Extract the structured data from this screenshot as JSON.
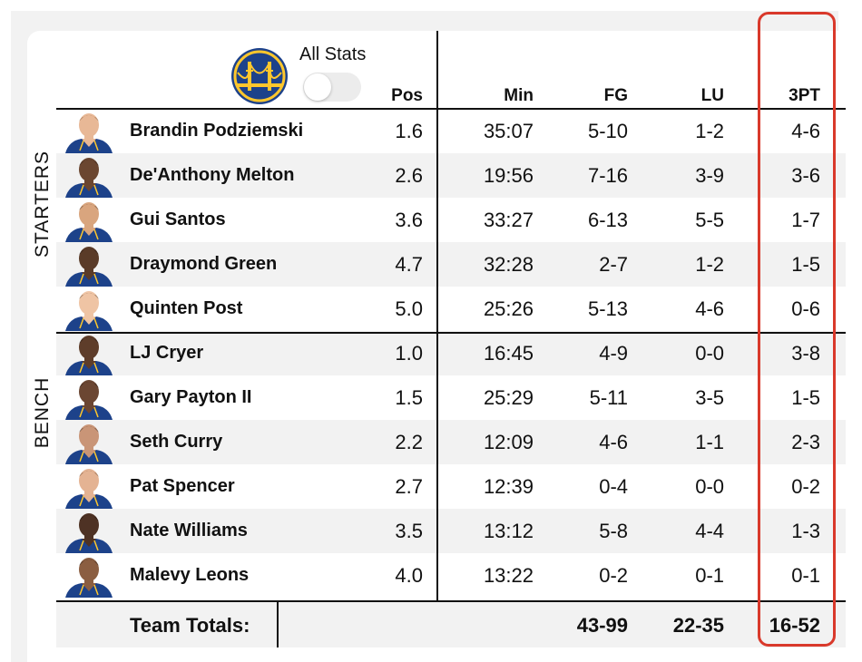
{
  "toggle": {
    "label": "All Stats",
    "on": false
  },
  "columns": {
    "pos": "Pos",
    "min": "Min",
    "fg": "FG",
    "lu": "LU",
    "three": "3PT"
  },
  "groups": {
    "starters": "STARTERS",
    "bench": "BENCH"
  },
  "colors": {
    "team_blue": "#1d428a",
    "team_gold": "#ffc72c",
    "highlight": "#d9392b",
    "row_alt": "#f2f2f2"
  },
  "players": [
    {
      "name": "Brandin Podziemski",
      "pos": "1.6",
      "min": "35:07",
      "fg": "5-10",
      "lu": "1-2",
      "three": "4-6",
      "skin": "#e8b896",
      "hair": "#7a5230"
    },
    {
      "name": "De'Anthony Melton",
      "pos": "2.6",
      "min": "19:56",
      "fg": "7-16",
      "lu": "3-9",
      "three": "3-6",
      "skin": "#6b4630",
      "hair": "#1e1410"
    },
    {
      "name": "Gui Santos",
      "pos": "3.6",
      "min": "33:27",
      "fg": "6-13",
      "lu": "5-5",
      "three": "1-7",
      "skin": "#d9a57e",
      "hair": "#3a2618"
    },
    {
      "name": "Draymond Green",
      "pos": "4.7",
      "min": "32:28",
      "fg": "2-7",
      "lu": "1-2",
      "three": "1-5",
      "skin": "#5a3b28",
      "hair": "#1b1410"
    },
    {
      "name": "Quinten Post",
      "pos": "5.0",
      "min": "25:26",
      "fg": "5-13",
      "lu": "4-6",
      "three": "0-6",
      "skin": "#efc4a4",
      "hair": "#4a3422"
    },
    {
      "name": "LJ Cryer",
      "pos": "1.0",
      "min": "16:45",
      "fg": "4-9",
      "lu": "0-0",
      "three": "3-8",
      "skin": "#5e3d2a",
      "hair": "#17110d"
    },
    {
      "name": "Gary Payton II",
      "pos": "1.5",
      "min": "25:29",
      "fg": "5-11",
      "lu": "3-5",
      "three": "1-5",
      "skin": "#6b4632",
      "hair": "#1a120e"
    },
    {
      "name": "Seth Curry",
      "pos": "2.2",
      "min": "12:09",
      "fg": "4-6",
      "lu": "1-1",
      "three": "2-3",
      "skin": "#c99577",
      "hair": "#2b1d14"
    },
    {
      "name": "Pat Spencer",
      "pos": "2.7",
      "min": "12:39",
      "fg": "0-4",
      "lu": "0-0",
      "three": "0-2",
      "skin": "#e4b393",
      "hair": "#5a3b22"
    },
    {
      "name": "Nate Williams",
      "pos": "3.5",
      "min": "13:12",
      "fg": "5-8",
      "lu": "4-4",
      "three": "1-3",
      "skin": "#4e3224",
      "hair": "#140e0b"
    },
    {
      "name": "Malevy Leons",
      "pos": "4.0",
      "min": "13:22",
      "fg": "0-2",
      "lu": "0-1",
      "three": "0-1",
      "skin": "#8b5e41",
      "hair": "#1a120d"
    }
  ],
  "totals": {
    "label": "Team Totals:",
    "fg": "43-99",
    "lu": "22-35",
    "three": "16-52"
  }
}
